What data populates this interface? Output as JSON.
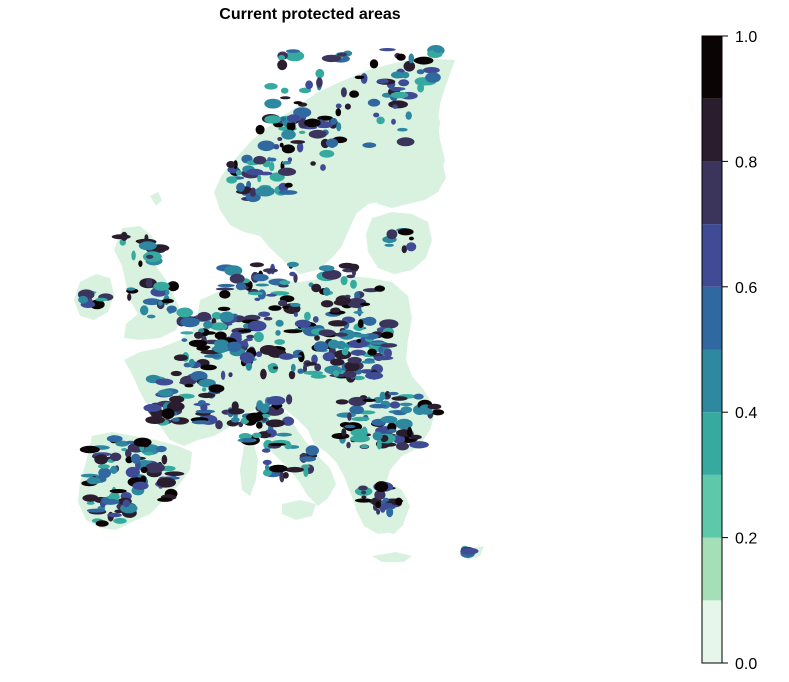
{
  "title": "Current protected areas",
  "legend": {
    "ticks": [
      "0.0",
      "0.2",
      "0.4",
      "0.6",
      "0.8",
      "1.0"
    ],
    "tick_values": [
      0.0,
      0.2,
      0.4,
      0.6,
      0.8,
      1.0
    ],
    "range": [
      0.0,
      1.0
    ],
    "bins": [
      {
        "from": 0.0,
        "to": 0.1,
        "color": "#e6f7ea"
      },
      {
        "from": 0.1,
        "to": 0.2,
        "color": "#a4dfb8"
      },
      {
        "from": 0.2,
        "to": 0.3,
        "color": "#5ec9aa"
      },
      {
        "from": 0.3,
        "to": 0.4,
        "color": "#37aaa0"
      },
      {
        "from": 0.4,
        "to": 0.5,
        "color": "#2e88a0"
      },
      {
        "from": 0.5,
        "to": 0.6,
        "color": "#3069a0"
      },
      {
        "from": 0.6,
        "to": 0.7,
        "color": "#3f4b94"
      },
      {
        "from": 0.7,
        "to": 0.8,
        "color": "#3b355e"
      },
      {
        "from": 0.8,
        "to": 0.9,
        "color": "#2a1d2e"
      },
      {
        "from": 0.9,
        "to": 1.0,
        "color": "#0b0404"
      }
    ],
    "placement": "right"
  },
  "map": {
    "region": "Europe",
    "land_color": "#d9f2e0"
  }
}
